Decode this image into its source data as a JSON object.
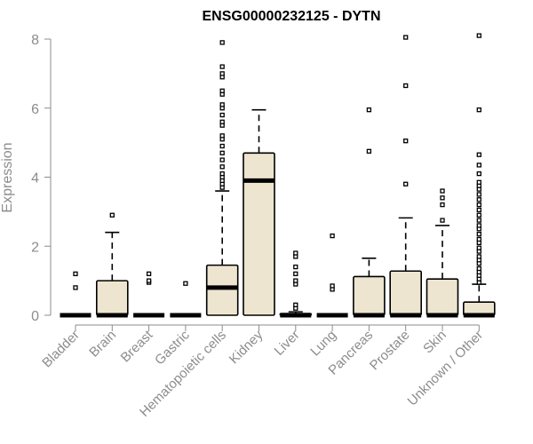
{
  "chart_data": {
    "type": "box",
    "title": "ENSG00000232125 - DYTN",
    "ylabel": "Expression",
    "xlabel": "",
    "ylim": [
      0,
      8
    ],
    "yticks": [
      0,
      2,
      4,
      6,
      8
    ],
    "grid": false,
    "legend": "none",
    "colors": {
      "box_fill": "#ede5cf",
      "outline": "#000000",
      "axis_text": "#8c8c8c"
    },
    "categories": [
      "Bladder",
      "Brain",
      "Breast",
      "Gastric",
      "Hematopoietic cells",
      "Kidney",
      "Liver",
      "Lung",
      "Pancreas",
      "Prostate",
      "Skin",
      "Unknown / Other"
    ],
    "boxes": [
      {
        "q1": 0,
        "median": 0,
        "q3": 0,
        "whisker_low": 0,
        "whisker_high": 0,
        "outliers": [
          0.8,
          1.2
        ]
      },
      {
        "q1": 0,
        "median": 0,
        "q3": 1.0,
        "whisker_low": 0,
        "whisker_high": 2.4,
        "outliers": [
          2.9
        ]
      },
      {
        "q1": 0,
        "median": 0,
        "q3": 0,
        "whisker_low": 0,
        "whisker_high": 0,
        "outliers": [
          0.95,
          1.0,
          1.2
        ]
      },
      {
        "q1": 0,
        "median": 0,
        "q3": 0,
        "whisker_low": 0,
        "whisker_high": 0,
        "outliers": [
          0.92
        ]
      },
      {
        "q1": 0,
        "median": 0.8,
        "q3": 1.45,
        "whisker_low": 0,
        "whisker_high": 3.6,
        "outliers": [
          3.7,
          3.8,
          3.9,
          4.0,
          4.1,
          4.3,
          4.5,
          4.7,
          4.9,
          5.1,
          5.2,
          5.5,
          5.6,
          5.8,
          6.0,
          6.1,
          6.4,
          6.5,
          6.9,
          7.0,
          7.2,
          7.9
        ]
      },
      {
        "q1": 0,
        "median": 3.9,
        "q3": 4.7,
        "whisker_low": 0,
        "whisker_high": 5.95,
        "outliers": []
      },
      {
        "q1": 0,
        "median": 0,
        "q3": 0.05,
        "whisker_low": 0,
        "whisker_high": 0.1,
        "outliers": [
          0.2,
          0.3,
          0.9,
          1.0,
          1.2,
          1.4,
          1.7,
          1.8
        ]
      },
      {
        "q1": 0,
        "median": 0,
        "q3": 0,
        "whisker_low": 0,
        "whisker_high": 0,
        "outliers": [
          0.75,
          0.85,
          2.3
        ]
      },
      {
        "q1": 0,
        "median": 0,
        "q3": 1.12,
        "whisker_low": 0,
        "whisker_high": 1.65,
        "outliers": [
          4.75,
          5.95
        ]
      },
      {
        "q1": 0,
        "median": 0,
        "q3": 1.28,
        "whisker_low": 0,
        "whisker_high": 2.82,
        "outliers": [
          3.8,
          5.05,
          6.65,
          8.05
        ]
      },
      {
        "q1": 0,
        "median": 0,
        "q3": 1.05,
        "whisker_low": 0,
        "whisker_high": 2.6,
        "outliers": [
          2.75,
          3.2,
          3.4,
          3.6
        ]
      },
      {
        "q1": 0,
        "median": 0,
        "q3": 0.38,
        "whisker_low": 0,
        "whisker_high": 0.9,
        "outliers": [
          0.95,
          1.05,
          1.15,
          1.25,
          1.35,
          1.5,
          1.6,
          1.7,
          1.85,
          1.95,
          2.1,
          2.2,
          2.35,
          2.5,
          2.6,
          2.75,
          2.9,
          3.05,
          3.2,
          3.35,
          3.5,
          3.65,
          3.75,
          3.85,
          4.1,
          4.35,
          4.65,
          5.95,
          8.1
        ]
      }
    ]
  }
}
